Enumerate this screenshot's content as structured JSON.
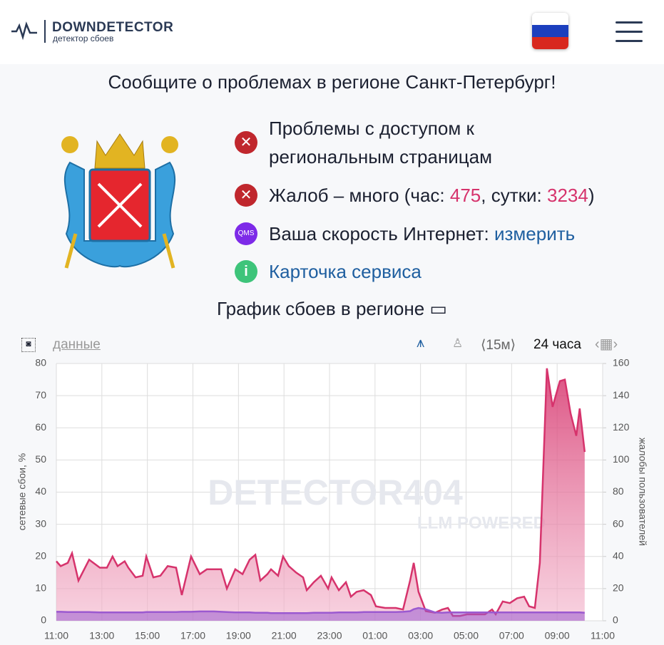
{
  "header": {
    "logo": "DOWNDETECTOR",
    "tagline": "детектор сбоев"
  },
  "headline": "Сообщите о проблемах в регионе Санкт-Петербург!",
  "status": {
    "access": "Проблемы с доступом к региональным страницам",
    "complaints_prefix": "Жалоб – много (час: ",
    "hour": 475,
    "complaints_mid": ", сутки: ",
    "day": 3234,
    "complaints_suffix": ")",
    "speed_prefix": "Ваша скорость Интернет: ",
    "speed_link": "измерить",
    "qms": "QMS",
    "card": "Карточка сервиса"
  },
  "chart_heading": "График сбоев в регионе",
  "toolbar": {
    "data": "данные",
    "interval": "⟨15м⟩",
    "period": "24 часа"
  },
  "chart_data": {
    "type": "area",
    "watermark": "DETECTOR404",
    "watermark_sub": "LLM POWERED",
    "ylabel": "сетевые сбои, %",
    "y2label": "жалобы пользователей",
    "x": [
      0,
      0.19,
      0.5,
      0.69,
      0.97,
      1.44,
      1.91,
      2.22,
      2.47,
      2.69,
      3.0,
      3.16,
      3.48,
      3.79,
      3.95,
      4.26,
      4.57,
      4.89,
      5.26,
      5.51,
      5.92,
      6.3,
      6.61,
      6.92,
      7.24,
      7.49,
      7.86,
      8.18,
      8.49,
      8.74,
      8.96,
      9.27,
      9.43,
      9.74,
      9.96,
      10.21,
      10.53,
      10.84,
      11.0,
      11.31,
      11.62,
      11.94,
      12.09,
      12.41,
      12.72,
      12.94,
      13.19,
      13.5,
      13.82,
      14.04,
      14.44,
      14.91,
      15.23,
      15.54,
      15.7,
      15.91,
      16.23,
      16.64,
      16.95,
      17.2,
      17.42,
      17.73,
      18.04,
      18.36,
      18.83,
      19.14,
      19.3,
      19.61,
      19.92,
      20.24,
      20.55,
      20.77,
      21.02,
      21.24,
      21.55,
      21.8,
      22.12,
      22.34,
      22.59,
      22.84,
      22.99,
      23.21
    ],
    "xlim": [
      0,
      24
    ],
    "xticks": [
      {
        "value": 0,
        "label": "11:00"
      },
      {
        "value": 2,
        "label": "13:00"
      },
      {
        "value": 4,
        "label": "15:00"
      },
      {
        "value": 6,
        "label": "17:00"
      },
      {
        "value": 8,
        "label": "19:00"
      },
      {
        "value": 10,
        "label": "21:00"
      },
      {
        "value": 12,
        "label": "23:00"
      },
      {
        "value": 14,
        "label": "01:00"
      },
      {
        "value": 16,
        "label": "03:00"
      },
      {
        "value": 18,
        "label": "05:00"
      },
      {
        "value": 20,
        "label": "07:00"
      },
      {
        "value": 22,
        "label": "09:00"
      },
      {
        "value": 24,
        "label": "11:00"
      }
    ],
    "ylim": [
      0,
      80
    ],
    "yticks": [
      0,
      10,
      20,
      30,
      40,
      50,
      60,
      70,
      80
    ],
    "y2lim": [
      0,
      160
    ],
    "y2ticks": [
      0,
      20,
      40,
      60,
      80,
      100,
      120,
      140,
      160
    ],
    "grid": true,
    "series": [
      {
        "name": "жалобы пользователей",
        "color": "#d6336c",
        "axis": "y2",
        "values": [
          37,
          34,
          36,
          42,
          25,
          38,
          33,
          33,
          40,
          34,
          37,
          33,
          27,
          28,
          40,
          27,
          28,
          34,
          33,
          16,
          40,
          29,
          32,
          32,
          32,
          20,
          32,
          29,
          38,
          41,
          25,
          29,
          32,
          28,
          40,
          34,
          30,
          27,
          19,
          24,
          28,
          20,
          27,
          19,
          24,
          15,
          18,
          19,
          16,
          9,
          8,
          8,
          7,
          25,
          36,
          18,
          6,
          5,
          7,
          8,
          3,
          3,
          4,
          4,
          4,
          7,
          4,
          12,
          11,
          14,
          15,
          9,
          8,
          36,
          157,
          133,
          149,
          150,
          129,
          115,
          132,
          105
        ]
      },
      {
        "name": "сетевые сбои, %",
        "color": "#9b59d0",
        "values": [
          2.8,
          2.8,
          2.7,
          2.7,
          2.7,
          2.7,
          2.6,
          2.6,
          2.6,
          2.6,
          2.6,
          2.6,
          2.6,
          2.6,
          2.7,
          2.7,
          2.7,
          2.7,
          2.7,
          2.8,
          2.8,
          2.9,
          2.9,
          2.9,
          2.8,
          2.7,
          2.6,
          2.6,
          2.6,
          2.5,
          2.5,
          2.5,
          2.4,
          2.4,
          2.4,
          2.4,
          2.4,
          2.4,
          2.4,
          2.5,
          2.5,
          2.5,
          2.5,
          2.6,
          2.6,
          2.6,
          2.6,
          2.7,
          2.7,
          2.7,
          2.7,
          2.7,
          2.8,
          3.0,
          3.6,
          4.0,
          3.6,
          2.6,
          2.5,
          2.6,
          2.6,
          2.6,
          2.6,
          2.6,
          2.6,
          2.6,
          2.6,
          2.6,
          2.6,
          2.6,
          2.6,
          2.6,
          2.6,
          2.6,
          2.6,
          2.6,
          2.6,
          2.6,
          2.6,
          2.6,
          2.6,
          2.5
        ]
      }
    ]
  }
}
